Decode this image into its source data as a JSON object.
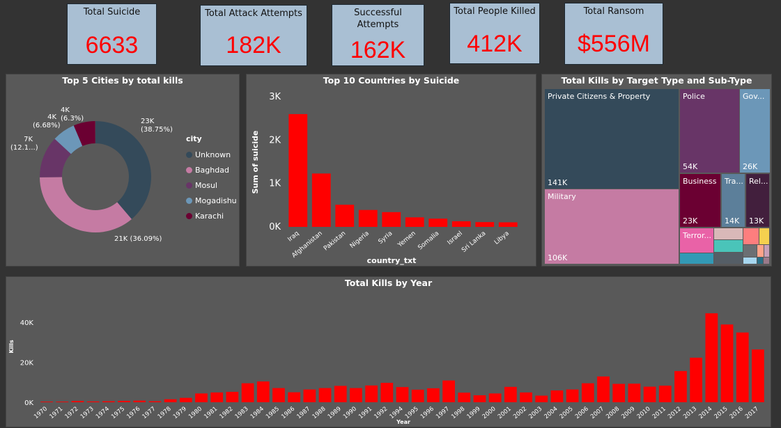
{
  "kpis": [
    {
      "title": "Total Suicide",
      "value": "6633"
    },
    {
      "title": "Total Attack Attempts",
      "value": "182K"
    },
    {
      "title": "Successful Attempts",
      "value": "162K"
    },
    {
      "title": "Total People Killed",
      "value": "412K"
    },
    {
      "title": "Total Ransom",
      "value": "$556M"
    }
  ],
  "colors": {
    "accent": "#ff0000",
    "card": "#a9bfd3",
    "panel": "#595959"
  },
  "donut": {
    "title": "Top 5 Cities by total kills",
    "legend_title": "city",
    "slices": [
      {
        "name": "Unknown",
        "percent": 38.75,
        "label": "23K",
        "pct_label": "(38.75%)",
        "color": "#344a5a"
      },
      {
        "name": "Baghdad",
        "percent": 36.09,
        "label": "21K (36.09%)",
        "pct_label": "",
        "color": "#c57ba3"
      },
      {
        "name": "Mosul",
        "percent": 12.1,
        "label": "7K",
        "pct_label": "(12.1...)",
        "color": "#683567"
      },
      {
        "name": "Mogadishu",
        "percent": 6.68,
        "label": "4K",
        "pct_label": "(6.68%)",
        "color": "#6c97b8"
      },
      {
        "name": "Karachi",
        "percent": 6.3,
        "label": "4K",
        "pct_label": "(6.3%)",
        "color": "#6b0032"
      }
    ]
  },
  "chart_data": [
    {
      "type": "bar",
      "title": "Top 10 Countries by Suicide",
      "xlabel": "country_txt",
      "ylabel": "Sum of suicide",
      "categories": [
        "Iraq",
        "Afghanistan",
        "Pakistan",
        "Nigeria",
        "Syria",
        "Yemen",
        "Somalia",
        "Israel",
        "Sri Lanka",
        "Libya"
      ],
      "values": [
        2600,
        1230,
        510,
        390,
        340,
        220,
        190,
        130,
        110,
        105
      ],
      "ylim": [
        0,
        3000
      ],
      "yticks": [
        "0K",
        "1K",
        "2K",
        "3K"
      ],
      "color": "#ff0000"
    },
    {
      "type": "bar",
      "title": "Total Kills by Year",
      "xlabel": "Year",
      "ylabel": "Kills",
      "categories": [
        "1970",
        "1971",
        "1972",
        "1973",
        "1974",
        "1975",
        "1976",
        "1977",
        "1978",
        "1979",
        "1980",
        "1981",
        "1982",
        "1983",
        "1984",
        "1985",
        "1986",
        "1987",
        "1988",
        "1989",
        "1990",
        "1991",
        "1992",
        "1994",
        "1995",
        "1996",
        "1997",
        "1998",
        "1999",
        "2000",
        "2001",
        "2002",
        "2003",
        "2004",
        "2005",
        "2006",
        "2007",
        "2008",
        "2009",
        "2010",
        "2011",
        "2012",
        "2013",
        "2014",
        "2015",
        "2016",
        "2017"
      ],
      "values": [
        300,
        300,
        600,
        400,
        500,
        700,
        800,
        500,
        1500,
        2200,
        4400,
        4900,
        5200,
        9500,
        10400,
        7100,
        5000,
        6400,
        7100,
        8200,
        7100,
        8400,
        9700,
        7600,
        6300,
        7000,
        10900,
        4800,
        3500,
        4400,
        7700,
        4900,
        3300,
        5900,
        6400,
        9500,
        12900,
        9200,
        9300,
        7800,
        8300,
        15600,
        22300,
        44500,
        38900,
        34900,
        26400
      ],
      "ylim": [
        0,
        47000
      ],
      "yticks": [
        "0K",
        "20K",
        "40K"
      ],
      "color": "#ff0000"
    }
  ],
  "treemap": {
    "title": "Total Kills by Target Type and Sub-Type",
    "items": [
      {
        "name": "Private Citizens & Property",
        "value": "141K",
        "color": "#344a5a"
      },
      {
        "name": "Military",
        "value": "106K",
        "color": "#c57ba3"
      },
      {
        "name": "Police",
        "value": "54K",
        "color": "#683567"
      },
      {
        "name": "Gov...",
        "value": "26K",
        "color": "#6c97b8"
      },
      {
        "name": "Business",
        "value": "23K",
        "color": "#6b0032"
      },
      {
        "name": "Tra...",
        "value": "14K",
        "color": "#5c7f9a"
      },
      {
        "name": "Rel...",
        "value": "13K",
        "color": "#421f3d"
      },
      {
        "name": "Terror...",
        "value": "",
        "color": "#e962a7"
      }
    ]
  }
}
